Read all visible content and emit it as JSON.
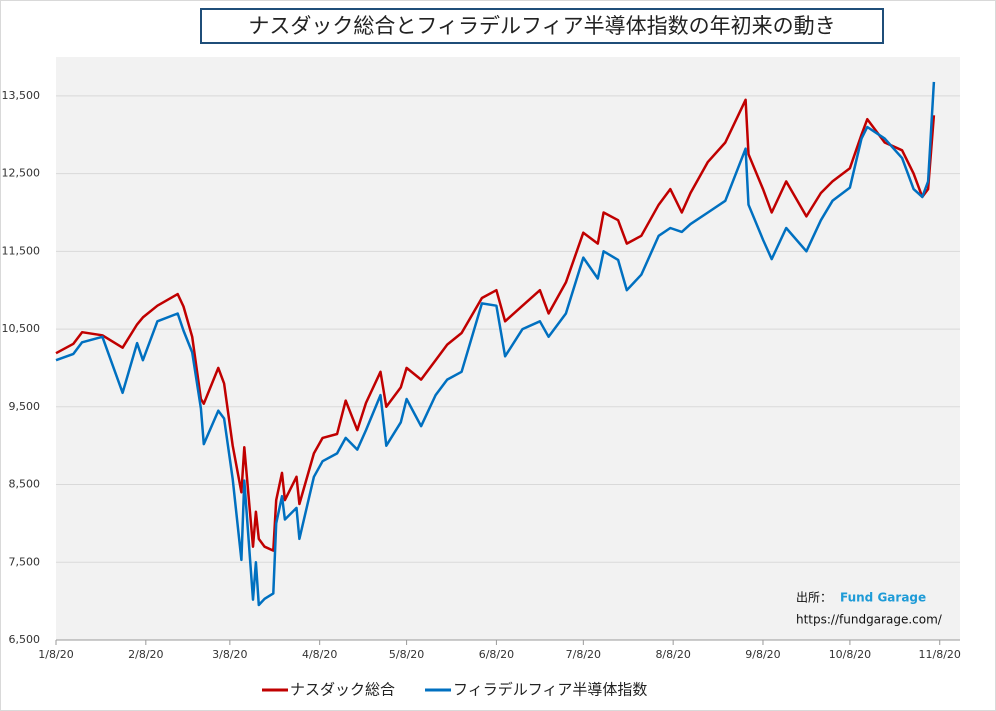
{
  "chart_data": {
    "type": "line",
    "title": "ナスダック総合とフィラデルフィア半導体指数の年初来の動き",
    "x": [
      "1/8/20",
      "1/14/20",
      "1/17/20",
      "1/24/20",
      "1/31/20",
      "2/5/20",
      "2/7/20",
      "2/12/20",
      "2/19/20",
      "2/21/20",
      "2/24/20",
      "2/27/20",
      "2/28/20",
      "3/4/20",
      "3/6/20",
      "3/9/20",
      "3/12/20",
      "3/13/20",
      "3/16/20",
      "3/17/20",
      "3/18/20",
      "3/20/20",
      "3/23/20",
      "3/24/20",
      "3/26/20",
      "3/27/20",
      "3/31/20",
      "4/1/20",
      "4/6/20",
      "4/9/20",
      "4/14/20",
      "4/17/20",
      "4/21/20",
      "4/24/20",
      "4/29/20",
      "5/1/20",
      "5/6/20",
      "5/8/20",
      "5/13/20",
      "5/18/20",
      "5/22/20",
      "5/27/20",
      "6/3/20",
      "6/8/20",
      "6/11/20",
      "6/17/20",
      "6/23/20",
      "6/26/20",
      "7/2/20",
      "7/8/20",
      "7/13/20",
      "7/15/20",
      "7/20/20",
      "7/23/20",
      "7/28/20",
      "8/3/20",
      "8/7/20",
      "8/11/20",
      "8/14/20",
      "8/20/20",
      "8/26/20",
      "9/2/20",
      "9/3/20",
      "9/8/20",
      "9/11/20",
      "9/16/20",
      "9/23/20",
      "9/28/20",
      "10/2/20",
      "10/8/20",
      "10/12/20",
      "10/14/20",
      "10/20/20",
      "10/26/20",
      "10/30/20",
      "11/2/20",
      "11/4/20",
      "11/6/20"
    ],
    "series": [
      {
        "name": "ナスダック総合",
        "color": "#c00000",
        "values": [
          10190,
          10310,
          10460,
          10420,
          10260,
          10560,
          10650,
          10800,
          10950,
          10790,
          10400,
          9600,
          9540,
          10000,
          9800,
          9000,
          8400,
          8980,
          7700,
          8150,
          7800,
          7700,
          7650,
          8300,
          8650,
          8300,
          8600,
          8250,
          8900,
          9100,
          9150,
          9580,
          9200,
          9550,
          9950,
          9500,
          9750,
          10000,
          9850,
          10100,
          10300,
          10450,
          10900,
          11000,
          10600,
          10800,
          11000,
          10700,
          11100,
          11740,
          11600,
          12000,
          11900,
          11600,
          11700,
          12100,
          12300,
          12000,
          12250,
          12650,
          12900,
          13450,
          12750,
          12300,
          12000,
          12400,
          11950,
          12250,
          12400,
          12570,
          13000,
          13200,
          12900,
          12800,
          12500,
          12200,
          12300,
          13250
        ]
      },
      {
        "name": "フィラデルフィア半導体指数",
        "color": "#0070c0",
        "values": [
          10100,
          10180,
          10330,
          10400,
          9680,
          10320,
          10100,
          10600,
          10700,
          10480,
          10200,
          9480,
          9020,
          9450,
          9350,
          8570,
          7530,
          8550,
          7020,
          7500,
          6950,
          7030,
          7100,
          8000,
          8350,
          8050,
          8200,
          7800,
          8600,
          8800,
          8900,
          9100,
          8950,
          9200,
          9650,
          9000,
          9300,
          9600,
          9250,
          9650,
          9850,
          9950,
          10830,
          10800,
          10150,
          10500,
          10600,
          10400,
          10700,
          11420,
          11150,
          11500,
          11390,
          11000,
          11200,
          11700,
          11800,
          11750,
          11850,
          12000,
          12150,
          12820,
          12100,
          11650,
          11400,
          11800,
          11500,
          11900,
          12150,
          12320,
          12950,
          13100,
          12950,
          12700,
          12300,
          12200,
          12400,
          13680
        ]
      }
    ],
    "xlim": [
      "1/8/20",
      "11/15/20"
    ],
    "xticks": [
      "1/8/20",
      "2/8/20",
      "3/8/20",
      "4/8/20",
      "5/8/20",
      "6/8/20",
      "7/8/20",
      "8/8/20",
      "9/8/20",
      "10/8/20",
      "11/8/20"
    ],
    "ylim": [
      6500,
      14000
    ],
    "yticks": [
      {
        "value": 6500,
        "label": "6,500"
      },
      {
        "value": 7500,
        "label": "7,500"
      },
      {
        "value": 8500,
        "label": "8,500"
      },
      {
        "value": 9500,
        "label": "9,500"
      },
      {
        "value": 10500,
        "label": "10,500"
      },
      {
        "value": 11500,
        "label": "11,500"
      },
      {
        "value": 12500,
        "label": "12,500"
      },
      {
        "value": 13500,
        "label": "13,500"
      }
    ],
    "grid": true,
    "legend": "bottom",
    "source_label": "出所：",
    "source_name": "Fund Garage",
    "source_url": "https://fundgarage.com/"
  }
}
